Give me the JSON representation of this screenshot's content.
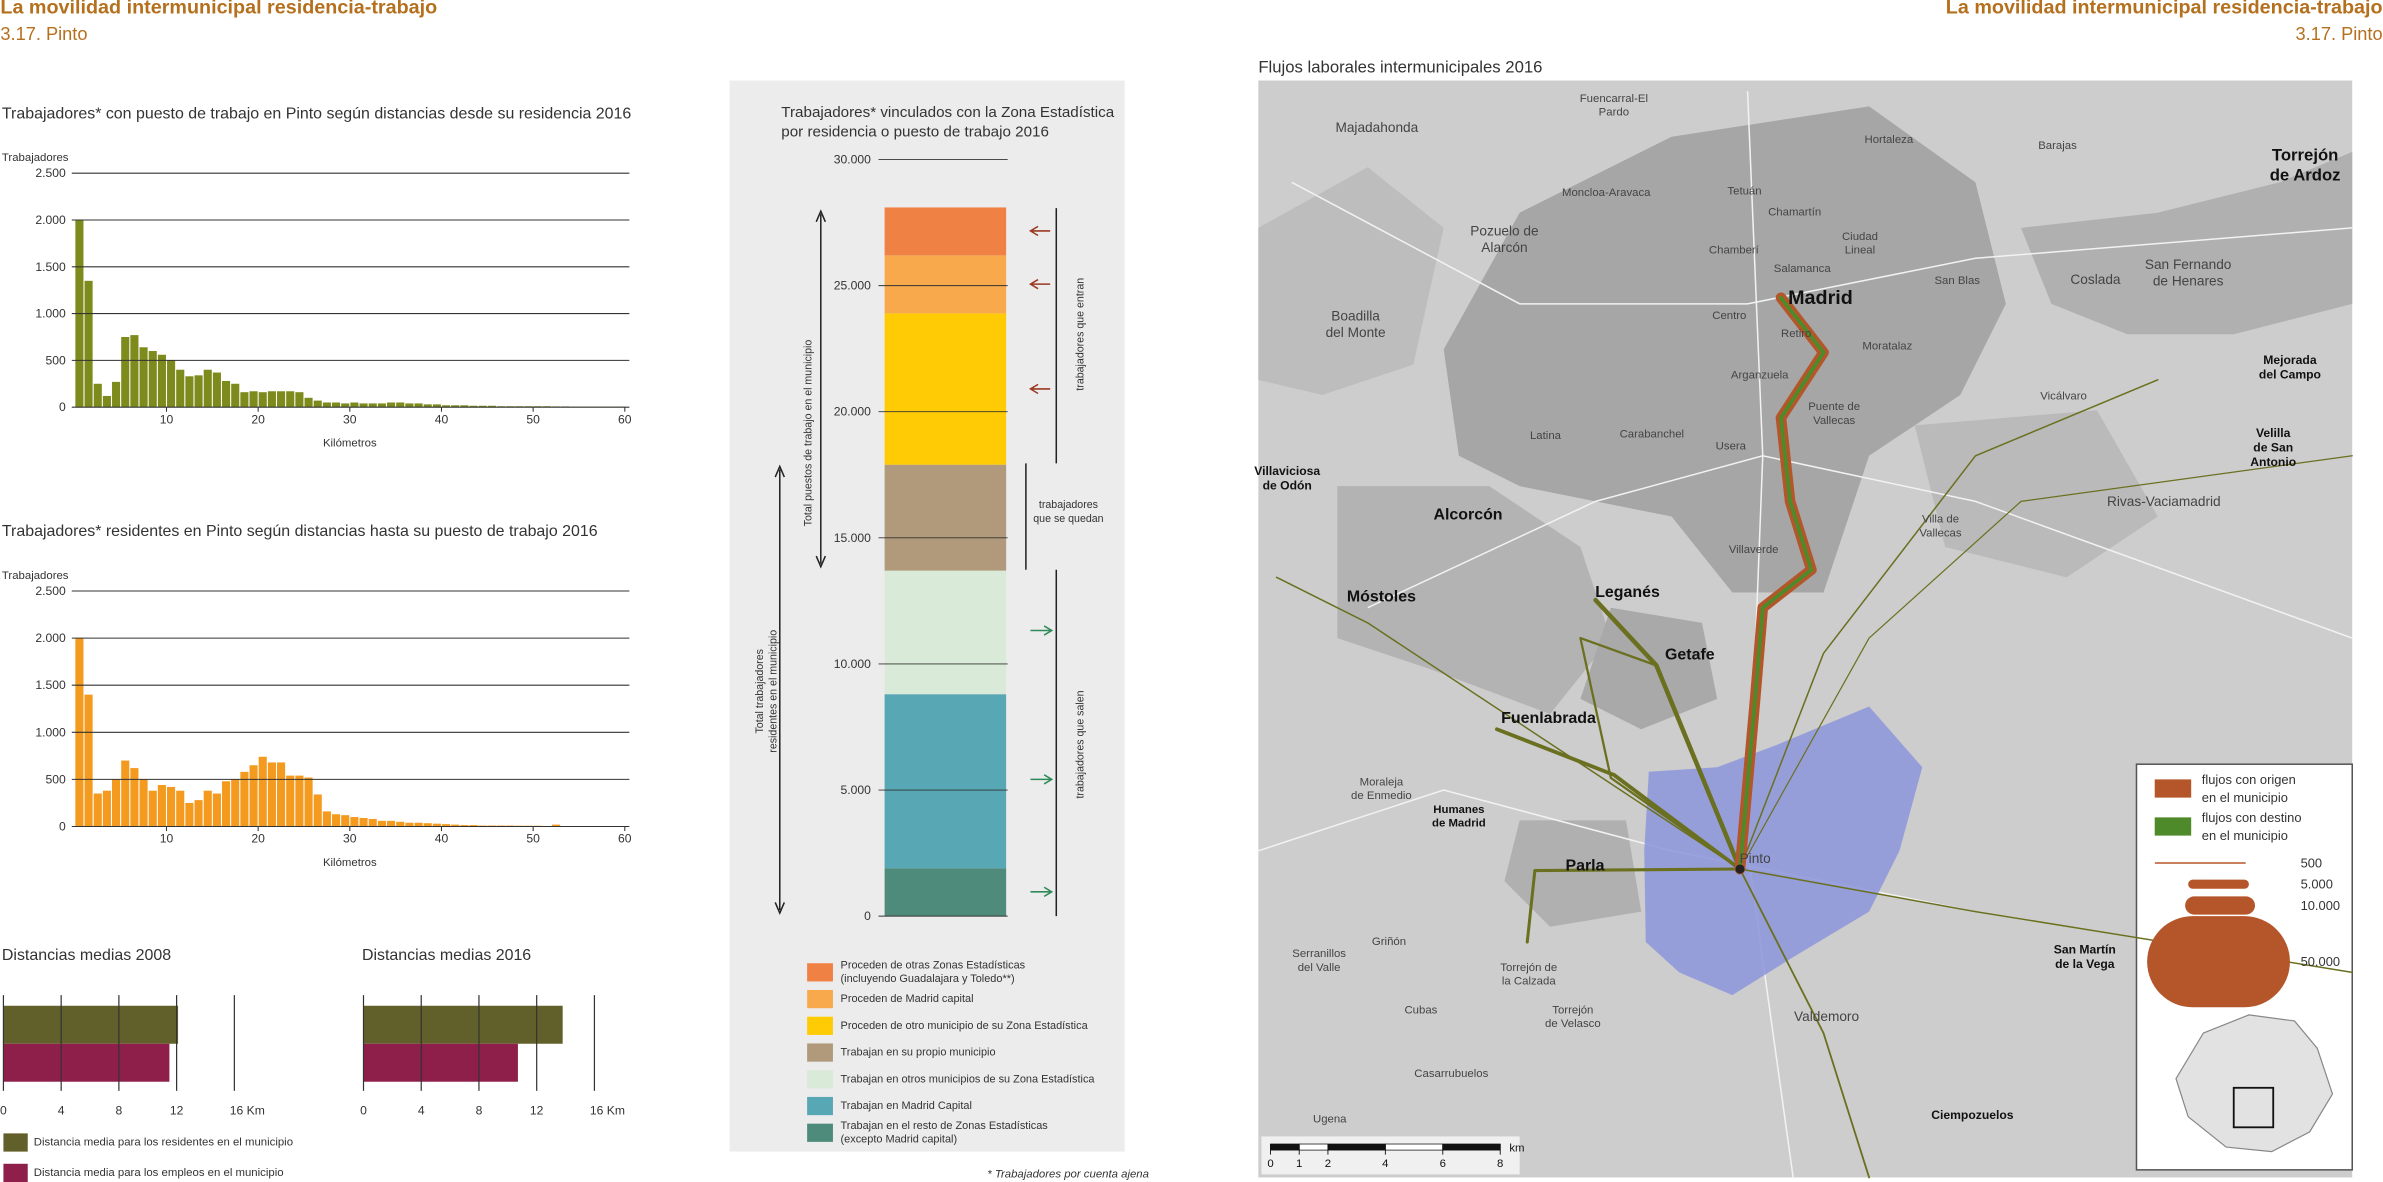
{
  "header": {
    "title": "La movilidad intermunicipal residencia-trabajo",
    "subtitle": "3.17. Pinto"
  },
  "chart_data": [
    {
      "type": "histogram",
      "title": "Trabajadores* con puesto de trabajo en Pinto según distancias desde su residencia 2016",
      "ylabel": "Trabajadores",
      "xlabel": "Kilómetros",
      "bins": [
        0,
        1,
        2,
        3,
        4,
        5,
        6,
        7,
        8,
        9,
        10,
        11,
        12,
        13,
        14,
        15,
        16,
        17,
        18,
        19,
        20,
        21,
        22,
        23,
        24,
        25,
        26,
        27,
        28,
        29,
        30,
        31,
        32,
        33,
        34,
        35,
        36,
        37,
        38,
        39,
        40,
        41,
        42,
        43,
        44,
        45,
        46,
        47,
        48,
        49,
        50,
        51,
        52,
        53,
        54,
        55,
        56,
        57,
        58,
        59,
        60
      ],
      "counts": [
        2000,
        1350,
        250,
        120,
        270,
        750,
        770,
        640,
        600,
        560,
        500,
        400,
        330,
        340,
        400,
        370,
        280,
        250,
        160,
        170,
        160,
        170,
        170,
        170,
        160,
        100,
        70,
        50,
        50,
        40,
        50,
        40,
        40,
        40,
        50,
        50,
        40,
        40,
        30,
        30,
        20,
        20,
        20,
        15,
        15,
        15,
        10,
        10,
        10,
        10,
        10,
        10,
        8,
        8,
        5,
        5,
        5,
        5,
        5,
        5
      ],
      "color": "#7d8b1d",
      "xlim": [
        0,
        60
      ],
      "ylim": [
        0,
        2500
      ],
      "xticks": [
        10,
        20,
        30,
        40,
        50,
        60
      ],
      "yticks": [
        0,
        500,
        {
          "value": 1000,
          "label": "1.000"
        },
        {
          "value": 1500,
          "label": "1.500"
        },
        {
          "value": 2000,
          "label": "2.000"
        },
        {
          "value": 2500,
          "label": "2.500"
        }
      ],
      "grid": true
    },
    {
      "type": "histogram",
      "title": "Trabajadores* residentes en Pinto según distancias hasta su puesto de trabajo 2016",
      "ylabel": "Trabajadores",
      "xlabel": "Kilómetros",
      "bins": [
        0,
        1,
        2,
        3,
        4,
        5,
        6,
        7,
        8,
        9,
        10,
        11,
        12,
        13,
        14,
        15,
        16,
        17,
        18,
        19,
        20,
        21,
        22,
        23,
        24,
        25,
        26,
        27,
        28,
        29,
        30,
        31,
        32,
        33,
        34,
        35,
        36,
        37,
        38,
        39,
        40,
        41,
        42,
        43,
        44,
        45,
        46,
        47,
        48,
        49,
        50,
        51,
        52,
        53,
        54,
        55,
        56,
        57,
        58,
        59,
        60
      ],
      "counts": [
        2000,
        1400,
        350,
        380,
        500,
        700,
        620,
        500,
        380,
        440,
        420,
        380,
        250,
        280,
        380,
        350,
        480,
        500,
        580,
        650,
        740,
        680,
        680,
        540,
        540,
        520,
        340,
        160,
        130,
        120,
        100,
        90,
        80,
        60,
        60,
        50,
        40,
        40,
        35,
        30,
        25,
        20,
        15,
        15,
        10,
        10,
        10,
        10,
        8,
        8,
        8,
        5,
        20,
        5,
        5,
        5,
        5,
        5,
        5,
        5
      ],
      "color": "#f39a1f",
      "xlim": [
        0,
        60
      ],
      "ylim": [
        0,
        2500
      ],
      "xticks": [
        10,
        20,
        30,
        40,
        50,
        60
      ],
      "yticks": [
        0,
        500,
        {
          "value": 1000,
          "label": "1.000"
        },
        {
          "value": 1500,
          "label": "1.500"
        },
        {
          "value": 2000,
          "label": "2.000"
        },
        {
          "value": 2500,
          "label": "2.500"
        }
      ],
      "grid": true
    },
    {
      "type": "stacked_column",
      "title": [
        "Trabajadores* vinculados con la Zona Estadística",
        "por residencia o puesto de trabajo 2016"
      ],
      "series": [
        {
          "name": "Proceden de otras Zonas Estadísticas (incluyendo Guadalajara y Toledo**)",
          "color": "#f08144",
          "values": [
            1900
          ]
        },
        {
          "name": "Proceden de Madrid capital",
          "color": "#f8a94c",
          "values": [
            2300
          ]
        },
        {
          "name": "Proceden de otro municipio de su Zona Estadística",
          "color": "#ffcb05",
          "values": [
            6000
          ]
        },
        {
          "name": "Trabajan en su propio municipio",
          "color": "#b09a7b",
          "values": [
            4200
          ]
        },
        {
          "name": "Trabajan en otros municipios de su Zona Estadística",
          "color": "#d9ead9",
          "values": [
            4900
          ]
        },
        {
          "name": "Trabajan en Madrid Capital",
          "color": "#58a7b4",
          "values": [
            6900
          ]
        },
        {
          "name": "Trabajan en el resto de Zonas Estadísticas (excepto Madrid capital)",
          "color": "#4f8b7b",
          "values": [
            1900
          ]
        }
      ],
      "ylim": [
        0,
        30000
      ],
      "yticks": [
        0,
        {
          "value": 5000,
          "label": "5.000"
        },
        {
          "value": 10000,
          "label": "10.000"
        },
        {
          "value": 15000,
          "label": "15.000"
        },
        {
          "value": 20000,
          "label": "20.000"
        },
        {
          "value": 25000,
          "label": "25.000"
        },
        {
          "value": 30000,
          "label": "30.000"
        }
      ],
      "annotations": [
        [
          "trabajadores que entran"
        ],
        [
          "trabajadores",
          "que se quedan"
        ],
        [
          "trabajadores que salen"
        ],
        [
          "Total puestos de trabajo en el municipio"
        ],
        [
          "Total trabajadores",
          "residentes en el municipio"
        ]
      ],
      "note": "* Trabajadores por cuenta ajena"
    },
    {
      "type": "hbar",
      "series": [
        {
          "name": "Distancia media para los residentes en el municipio",
          "color": "#62602a"
        },
        {
          "name": "Distancia media para los empleos en el municipio",
          "color": "#8e1f4a"
        }
      ],
      "panels": [
        {
          "title": "Distancias medias 2008",
          "values": [
            12.1,
            11.5
          ]
        },
        {
          "title": "Distancias medias 2016",
          "values": [
            13.8,
            10.7
          ]
        }
      ],
      "xlim": [
        0,
        16
      ],
      "xticks": [
        0,
        4,
        8,
        12,
        {
          "value": 16,
          "label": "16 Km"
        }
      ]
    }
  ],
  "map": {
    "title": "Flujos laborales intermunicipales 2016",
    "labels": [
      "Majadahonda",
      [
        "Fuencarral-El",
        "Pardo"
      ],
      "Moncloa-Aravaca",
      "Tetuán",
      "Chamartín",
      "Hortaleza",
      "Barajas",
      [
        "Torrejón",
        "de Ardoz"
      ],
      [
        "Pozuelo de",
        "Alarcón"
      ],
      "Chamberí",
      [
        "Ciudad",
        "Lineal"
      ],
      "Salamanca",
      "Madrid",
      "San Blas",
      "Coslada",
      [
        "San Fernando",
        "de Henares"
      ],
      [
        "Boadilla",
        "del Monte"
      ],
      "Centro",
      "Retiro",
      "Moratalaz",
      [
        "Mejorada",
        "del Campo"
      ],
      "Arganzuela",
      [
        "Puente de",
        "Vallecas"
      ],
      "Vicálvaro",
      "Latina",
      "Carabanchel",
      "Usera",
      [
        "Velilla",
        "de San",
        "Antonio"
      ],
      [
        "Villaviciosa",
        "de Odón"
      ],
      "Rivas-Vaciamadrid",
      "Alcorcón",
      [
        "Villa de",
        "Vallecas"
      ],
      "Villaverde",
      "Leganés",
      "Móstoles",
      "Getafe",
      "Fuenlabrada",
      [
        "Moraleja",
        "de Enmedio"
      ],
      [
        "Humanes",
        "de Madrid"
      ],
      "Pinto",
      "Parla",
      [
        "Serranillos",
        "del Valle"
      ],
      "Griñón",
      [
        "Torrejón de",
        "la Calzada"
      ],
      "Cubas",
      [
        "Torrejón",
        "de Velasco"
      ],
      "Valdemoro",
      [
        "San Martín",
        "de la Vega"
      ],
      "Casarrubuelos",
      "Ciempozuelos",
      "Ugena"
    ],
    "legend": {
      "entries": [
        {
          "lines": [
            "flujos con origen",
            "en el municipio"
          ],
          "color": "#b5562a"
        },
        {
          "lines": [
            "flujos con destino",
            "en el municipio"
          ],
          "color": "#4f8a2a"
        }
      ],
      "sizes": [
        {
          "value": 500,
          "label": "500"
        },
        {
          "value": 5000,
          "label": "5.000"
        },
        {
          "value": 10000,
          "label": "10.000"
        },
        {
          "value": 50000,
          "label": "50.000"
        }
      ]
    },
    "scale": {
      "ticks": [
        0,
        1,
        2,
        4,
        6,
        8
      ],
      "unit": "km"
    }
  }
}
